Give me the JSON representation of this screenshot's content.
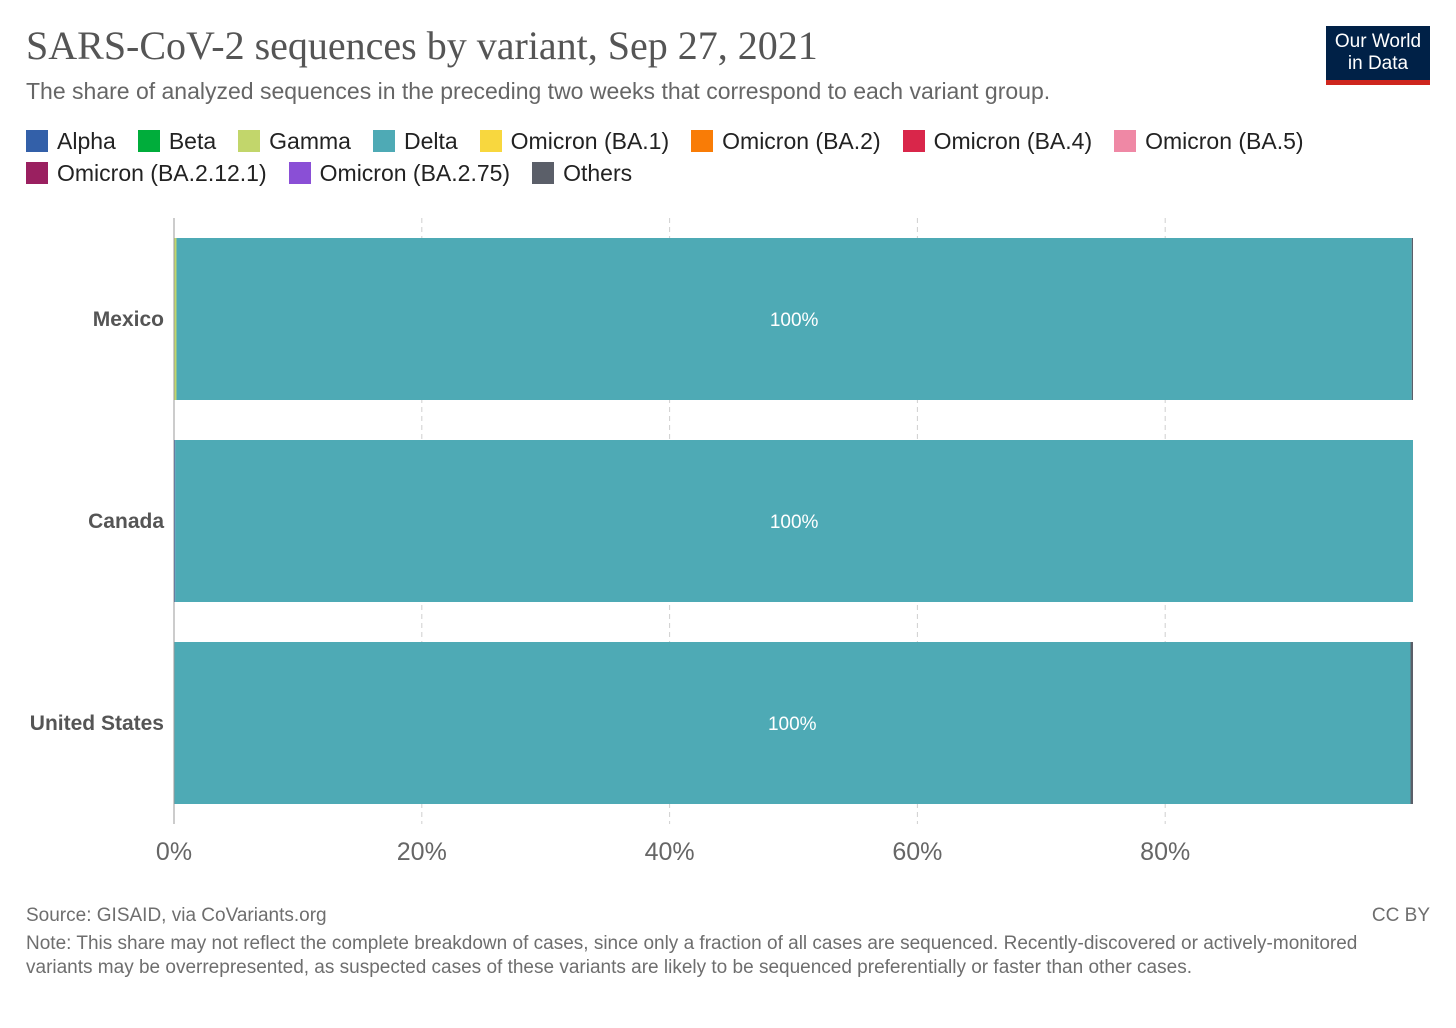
{
  "header": {
    "title": "SARS-CoV-2 sequences by variant, Sep 27, 2021",
    "subtitle": "The share of analyzed sequences in the preceding two weeks that correspond to each variant group.",
    "logo_line1": "Our World",
    "logo_line2": "in Data"
  },
  "footer": {
    "source": "Source: GISAID, via CoVariants.org",
    "license": "CC BY",
    "note": "Note: This share may not reflect the complete breakdown of cases, since only a fraction of all cases are sequenced. Recently-discovered or actively-monitored variants may be overrepresented, as suspected cases of these variants are likely to be sequenced preferentially or faster than other cases."
  },
  "chart_data": {
    "type": "bar",
    "orientation": "horizontal",
    "stacked": true,
    "categories": [
      "Mexico",
      "Canada",
      "United States"
    ],
    "series": [
      {
        "name": "Alpha",
        "color": "#3360a9",
        "values": [
          0,
          0.1,
          0
        ]
      },
      {
        "name": "Beta",
        "color": "#00ad3b",
        "values": [
          0,
          0,
          0
        ]
      },
      {
        "name": "Gamma",
        "color": "#c2d66b",
        "values": [
          0.2,
          0,
          0
        ]
      },
      {
        "name": "Delta",
        "color": "#4eaab5",
        "values": [
          99.7,
          99.9,
          99.8
        ]
      },
      {
        "name": "Omicron (BA.1)",
        "color": "#f8d73e",
        "values": [
          0,
          0,
          0
        ]
      },
      {
        "name": "Omicron (BA.2)",
        "color": "#f97c06",
        "values": [
          0,
          0,
          0
        ]
      },
      {
        "name": "Omicron (BA.4)",
        "color": "#d9264a",
        "values": [
          0,
          0,
          0
        ]
      },
      {
        "name": "Omicron (BA.5)",
        "color": "#ef88a5",
        "values": [
          0,
          0,
          0
        ]
      },
      {
        "name": "Omicron (BA.2.12.1)",
        "color": "#9a2060",
        "values": [
          0,
          0,
          0
        ]
      },
      {
        "name": "Omicron (BA.2.75)",
        "color": "#8a4fd6",
        "values": [
          0,
          0,
          0
        ]
      },
      {
        "name": "Others",
        "color": "#5b5f69",
        "values": [
          0.1,
          0,
          0.2
        ]
      }
    ],
    "data_labels": [
      "100%",
      "100%",
      "100%"
    ],
    "label_series": "Delta",
    "xticks": [
      "0%",
      "20%",
      "40%",
      "60%",
      "80%"
    ],
    "xtick_values": [
      0,
      20,
      40,
      60,
      80
    ],
    "xlim": [
      0,
      100
    ],
    "grid": "vertical dashed",
    "legend_position": "top"
  }
}
